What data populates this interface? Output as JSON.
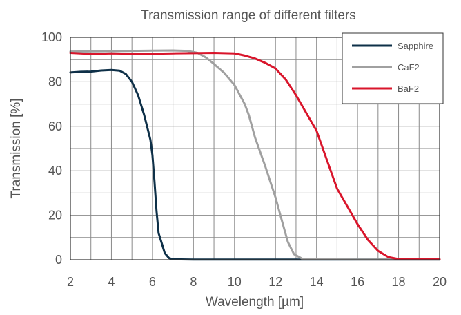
{
  "chart_data": {
    "type": "line",
    "title": "Transmission range of different filters",
    "xlabel": "Wavelength [µm]",
    "ylabel": "Transmission [%]",
    "xlim": [
      2,
      20
    ],
    "ylim": [
      0,
      100
    ],
    "xticks": [
      2,
      4,
      6,
      8,
      10,
      12,
      14,
      16,
      18,
      20
    ],
    "yticks": [
      0,
      20,
      40,
      60,
      80,
      100
    ],
    "x_minor_step": 1,
    "y_minor_step": 10,
    "grid": true,
    "legend_position": "top-right",
    "series": [
      {
        "name": "Sapphire",
        "color": "#0e3048",
        "points": [
          [
            2,
            84.2
          ],
          [
            2.5,
            84.5
          ],
          [
            3,
            84.6
          ],
          [
            3.5,
            85.1
          ],
          [
            4,
            85.3
          ],
          [
            4.4,
            85
          ],
          [
            4.7,
            83.5
          ],
          [
            5,
            80
          ],
          [
            5.3,
            74
          ],
          [
            5.6,
            65
          ],
          [
            5.9,
            54
          ],
          [
            6,
            47
          ],
          [
            6.1,
            35
          ],
          [
            6.2,
            22
          ],
          [
            6.3,
            12
          ],
          [
            6.4,
            9
          ],
          [
            6.5,
            6
          ],
          [
            6.6,
            3
          ],
          [
            6.8,
            0.8
          ],
          [
            7,
            0.2
          ],
          [
            8,
            0.1
          ],
          [
            10,
            0.1
          ],
          [
            14,
            0.1
          ],
          [
            18,
            0.1
          ],
          [
            20,
            0.1
          ]
        ]
      },
      {
        "name": "CaF2",
        "color": "#a0a0a0",
        "points": [
          [
            2,
            93.6
          ],
          [
            3,
            93.7
          ],
          [
            4,
            93.8
          ],
          [
            5,
            93.9
          ],
          [
            6,
            94
          ],
          [
            7,
            94.1
          ],
          [
            7.7,
            93.9
          ],
          [
            8.2,
            93
          ],
          [
            8.6,
            91
          ],
          [
            9,
            88
          ],
          [
            9.5,
            84
          ],
          [
            10,
            78.5
          ],
          [
            10.5,
            70
          ],
          [
            10.7,
            65
          ],
          [
            11,
            55
          ],
          [
            11.5,
            42
          ],
          [
            12,
            28
          ],
          [
            12.3,
            18
          ],
          [
            12.6,
            8
          ],
          [
            12.9,
            2.5
          ],
          [
            13.3,
            0.5
          ],
          [
            14,
            0.2
          ],
          [
            16,
            0.1
          ],
          [
            20,
            0.1
          ]
        ]
      },
      {
        "name": "BaF2",
        "color": "#d9152b",
        "points": [
          [
            2,
            93
          ],
          [
            3,
            92.5
          ],
          [
            4,
            92.8
          ],
          [
            5,
            92.6
          ],
          [
            6,
            92.6
          ],
          [
            7,
            92.8
          ],
          [
            8,
            92.9
          ],
          [
            9,
            93
          ],
          [
            10,
            92.8
          ],
          [
            10.5,
            91.8
          ],
          [
            11,
            90.5
          ],
          [
            11.5,
            88.5
          ],
          [
            12,
            86
          ],
          [
            12.5,
            81
          ],
          [
            13,
            74
          ],
          [
            13.5,
            66
          ],
          [
            14,
            58
          ],
          [
            14.5,
            45
          ],
          [
            15,
            32
          ],
          [
            15.5,
            24
          ],
          [
            16,
            16
          ],
          [
            16.5,
            9
          ],
          [
            17,
            4
          ],
          [
            17.5,
            1.2
          ],
          [
            18,
            0.3
          ],
          [
            19,
            0.2
          ],
          [
            20,
            0.2
          ]
        ]
      }
    ]
  }
}
